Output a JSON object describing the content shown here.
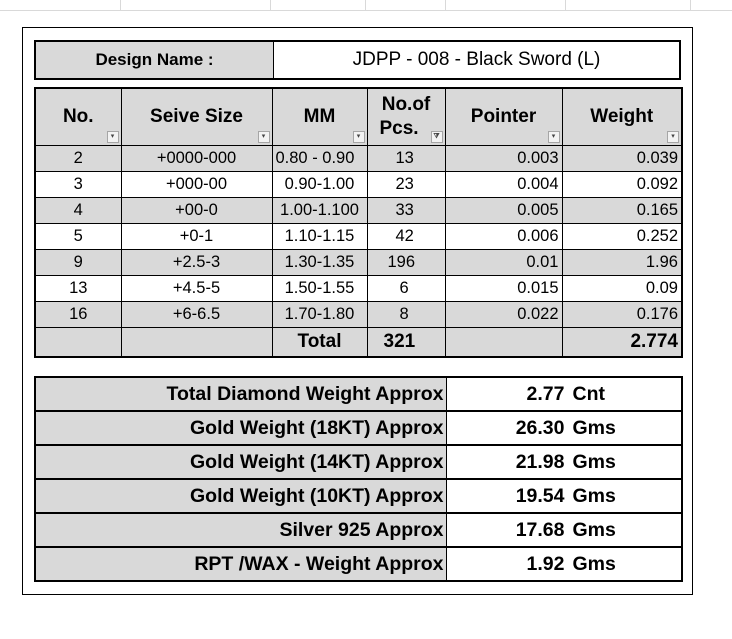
{
  "design": {
    "label": "Design Name :",
    "value": "JDPP - 008 - Black Sword (L)"
  },
  "table": {
    "headers": [
      {
        "line1": "No.",
        "line2": "",
        "filter": "▾"
      },
      {
        "line1": "Seive Size",
        "line2": "",
        "filter": "▾"
      },
      {
        "line1": "MM",
        "line2": "",
        "filter": "▾"
      },
      {
        "line1": "No.of",
        "line2": "Pcs.",
        "filter": "⧩"
      },
      {
        "line1": "Pointer",
        "line2": "",
        "filter": "▾"
      },
      {
        "line1": "Weight",
        "line2": "",
        "filter": "▾"
      }
    ],
    "rows": [
      {
        "no": "2",
        "sieve": "+0000-000",
        "mm": "0.80 - 0.90",
        "pcs": "13",
        "pointer": "0.003",
        "weight": "0.039"
      },
      {
        "no": "3",
        "sieve": "+000-00",
        "mm": "0.90-1.00",
        "pcs": "23",
        "pointer": "0.004",
        "weight": "0.092"
      },
      {
        "no": "4",
        "sieve": "+00-0",
        "mm": "1.00-1.100",
        "pcs": "33",
        "pointer": "0.005",
        "weight": "0.165"
      },
      {
        "no": "5",
        "sieve": "+0-1",
        "mm": "1.10-1.15",
        "pcs": "42",
        "pointer": "0.006",
        "weight": "0.252"
      },
      {
        "no": "9",
        "sieve": "+2.5-3",
        "mm": "1.30-1.35",
        "pcs": "196",
        "pointer": "0.01",
        "weight": "1.96"
      },
      {
        "no": "13",
        "sieve": "+4.5-5",
        "mm": "1.50-1.55",
        "pcs": "6",
        "pointer": "0.015",
        "weight": "0.09"
      },
      {
        "no": "16",
        "sieve": "+6-6.5",
        "mm": "1.70-1.80",
        "pcs": "8",
        "pointer": "0.022",
        "weight": "0.176"
      }
    ],
    "total": {
      "label": "Total",
      "pcs": "321",
      "weight": "2.774"
    }
  },
  "summary": [
    {
      "label": "Total Diamond Weight Approx",
      "value": "2.77",
      "unit": "Cnt"
    },
    {
      "label": "Gold Weight (18KT) Approx",
      "value": "26.30",
      "unit": "Gms"
    },
    {
      "label": "Gold Weight (14KT) Approx",
      "value": "21.98",
      "unit": "Gms"
    },
    {
      "label": "Gold Weight (10KT) Approx",
      "value": "19.54",
      "unit": "Gms"
    },
    {
      "label": "Silver 925 Approx",
      "value": "17.68",
      "unit": "Gms"
    },
    {
      "label": "RPT /WAX - Weight Approx",
      "value": "1.92",
      "unit": "Gms"
    }
  ],
  "colors": {
    "header_fill": "#d9d9d9",
    "border": "#000000"
  }
}
